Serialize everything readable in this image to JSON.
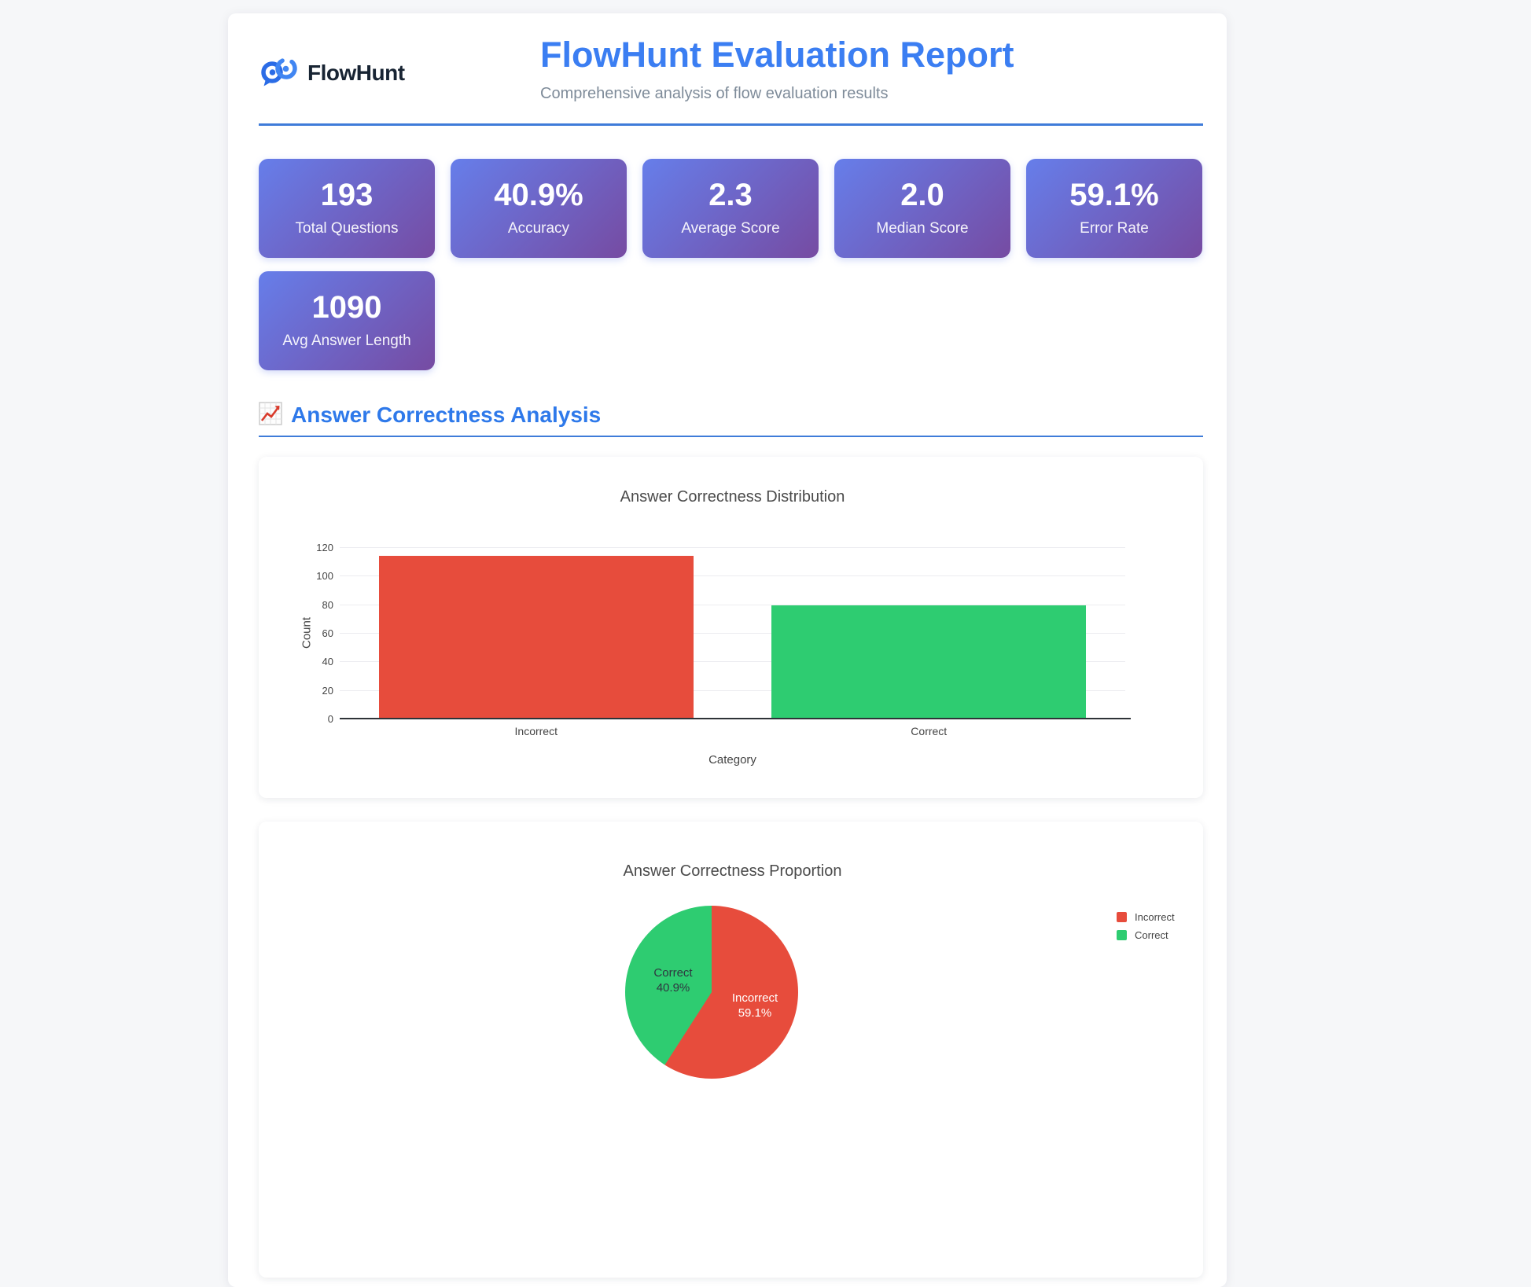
{
  "header": {
    "brand": "FlowHunt",
    "title": "FlowHunt Evaluation Report",
    "subtitle": "Comprehensive analysis of flow evaluation results",
    "accent_color": "#3b7ef2",
    "divider_color": "#3f7cd9"
  },
  "stats": [
    {
      "value": "193",
      "label": "Total Questions"
    },
    {
      "value": "40.9%",
      "label": "Accuracy"
    },
    {
      "value": "2.3",
      "label": "Average Score"
    },
    {
      "value": "2.0",
      "label": "Median Score"
    },
    {
      "value": "59.1%",
      "label": "Error Rate"
    },
    {
      "value": "1090",
      "label": "Avg Answer Length"
    }
  ],
  "stat_card_gradient": [
    "#667eea",
    "#764ba2"
  ],
  "section": {
    "icon": "chart-increasing-icon",
    "title": "Answer Correctness Analysis"
  },
  "chart_data": [
    {
      "type": "bar",
      "title": "Answer Correctness Distribution",
      "categories": [
        "Incorrect",
        "Correct"
      ],
      "values": [
        114,
        79
      ],
      "colors": [
        "#e74c3c",
        "#2ecc71"
      ],
      "xlabel": "Category",
      "ylabel": "Count",
      "ylim": [
        0,
        120
      ],
      "yticks": [
        0,
        20,
        40,
        60,
        80,
        100,
        120
      ],
      "grid": true,
      "legend": false
    },
    {
      "type": "pie",
      "title": "Answer Correctness Proportion",
      "labels": [
        "Incorrect",
        "Correct"
      ],
      "values": [
        59.1,
        40.9
      ],
      "colors": [
        "#e74c3c",
        "#2ecc71"
      ],
      "slices": [
        {
          "label": "Incorrect",
          "pct": "59.1%"
        },
        {
          "label": "Correct",
          "pct": "40.9%"
        }
      ],
      "start_angle": "top",
      "direction": "clockwise",
      "legend_position": "right"
    }
  ]
}
